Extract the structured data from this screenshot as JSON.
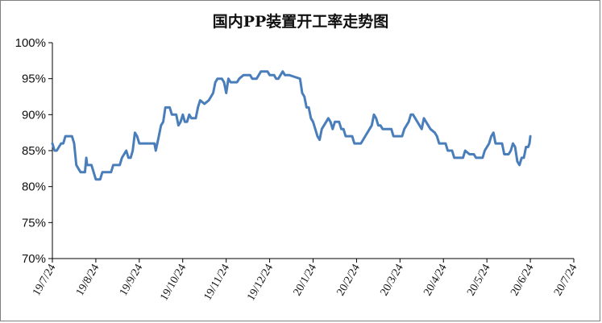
{
  "chart_data": {
    "type": "line",
    "title": "国内PP装置开工率走势图",
    "xlabel": "",
    "ylabel": "",
    "ylim": [
      70,
      100
    ],
    "yticks": [
      "70%",
      "75%",
      "80%",
      "85%",
      "90%",
      "95%",
      "100%"
    ],
    "xticks": [
      "19/7/24",
      "19/8/24",
      "19/9/24",
      "19/10/24",
      "19/11/24",
      "19/12/24",
      "20/1/24",
      "20/2/24",
      "20/3/24",
      "20/4/24",
      "20/5/24",
      "20/6/24",
      "20/7/24"
    ],
    "grid": false,
    "legend": "none",
    "line_color": "#4a7ebb",
    "series": [
      {
        "values": [
          [
            0.0,
            86.0
          ],
          [
            0.05,
            85.0
          ],
          [
            0.1,
            85.0
          ],
          [
            0.15,
            85.5
          ],
          [
            0.2,
            86.0
          ],
          [
            0.25,
            86.0
          ],
          [
            0.3,
            87.0
          ],
          [
            0.45,
            87.0
          ],
          [
            0.5,
            86.0
          ],
          [
            0.55,
            83.0
          ],
          [
            0.6,
            82.5
          ],
          [
            0.65,
            82.0
          ],
          [
            0.75,
            82.0
          ],
          [
            0.78,
            84.0
          ],
          [
            0.8,
            83.0
          ],
          [
            0.9,
            83.0
          ],
          [
            1.0,
            81.0
          ],
          [
            1.1,
            81.0
          ],
          [
            1.15,
            82.0
          ],
          [
            1.35,
            82.0
          ],
          [
            1.4,
            83.0
          ],
          [
            1.55,
            83.0
          ],
          [
            1.6,
            84.0
          ],
          [
            1.7,
            85.0
          ],
          [
            1.75,
            84.0
          ],
          [
            1.8,
            84.0
          ],
          [
            1.85,
            85.0
          ],
          [
            1.9,
            87.5
          ],
          [
            1.95,
            87.0
          ],
          [
            2.0,
            86.0
          ],
          [
            2.35,
            86.0
          ],
          [
            2.38,
            85.0
          ],
          [
            2.45,
            87.0
          ],
          [
            2.5,
            88.5
          ],
          [
            2.55,
            89.0
          ],
          [
            2.6,
            91.0
          ],
          [
            2.7,
            91.0
          ],
          [
            2.75,
            90.0
          ],
          [
            2.85,
            90.0
          ],
          [
            2.9,
            88.5
          ],
          [
            2.95,
            89.0
          ],
          [
            3.0,
            90.0
          ],
          [
            3.05,
            89.0
          ],
          [
            3.1,
            89.0
          ],
          [
            3.15,
            90.0
          ],
          [
            3.2,
            89.5
          ],
          [
            3.3,
            89.5
          ],
          [
            3.35,
            91.0
          ],
          [
            3.4,
            92.0
          ],
          [
            3.5,
            91.5
          ],
          [
            3.6,
            92.0
          ],
          [
            3.7,
            93.0
          ],
          [
            3.75,
            94.5
          ],
          [
            3.8,
            95.0
          ],
          [
            3.9,
            95.0
          ],
          [
            3.95,
            94.5
          ],
          [
            4.0,
            93.0
          ],
          [
            4.05,
            95.0
          ],
          [
            4.1,
            94.5
          ],
          [
            4.25,
            94.5
          ],
          [
            4.3,
            95.0
          ],
          [
            4.4,
            95.5
          ],
          [
            4.55,
            95.5
          ],
          [
            4.6,
            95.0
          ],
          [
            4.7,
            95.0
          ],
          [
            4.8,
            96.0
          ],
          [
            4.95,
            96.0
          ],
          [
            5.0,
            95.5
          ],
          [
            5.1,
            95.5
          ],
          [
            5.15,
            95.0
          ],
          [
            5.2,
            95.0
          ],
          [
            5.3,
            96.0
          ],
          [
            5.35,
            95.5
          ],
          [
            5.45,
            95.5
          ],
          [
            5.55,
            95.3
          ],
          [
            5.7,
            95.0
          ],
          [
            5.75,
            93.0
          ],
          [
            5.8,
            92.5
          ],
          [
            5.85,
            91.0
          ],
          [
            5.9,
            91.0
          ],
          [
            5.95,
            89.5
          ],
          [
            6.0,
            89.0
          ],
          [
            6.05,
            88.0
          ],
          [
            6.1,
            87.0
          ],
          [
            6.15,
            86.5
          ],
          [
            6.2,
            88.0
          ],
          [
            6.3,
            89.0
          ],
          [
            6.35,
            89.5
          ],
          [
            6.4,
            89.0
          ],
          [
            6.45,
            88.0
          ],
          [
            6.5,
            89.0
          ],
          [
            6.6,
            89.0
          ],
          [
            6.65,
            88.0
          ],
          [
            6.7,
            88.0
          ],
          [
            6.75,
            87.0
          ],
          [
            6.9,
            87.0
          ],
          [
            6.95,
            86.0
          ],
          [
            7.1,
            86.0
          ],
          [
            7.2,
            87.0
          ],
          [
            7.3,
            88.0
          ],
          [
            7.35,
            88.5
          ],
          [
            7.4,
            90.0
          ],
          [
            7.45,
            89.5
          ],
          [
            7.5,
            88.5
          ],
          [
            7.55,
            88.5
          ],
          [
            7.6,
            88.0
          ],
          [
            7.8,
            88.0
          ],
          [
            7.85,
            87.0
          ],
          [
            8.05,
            87.0
          ],
          [
            8.1,
            88.0
          ],
          [
            8.2,
            89.0
          ],
          [
            8.25,
            90.0
          ],
          [
            8.3,
            90.0
          ],
          [
            8.35,
            89.5
          ],
          [
            8.45,
            88.5
          ],
          [
            8.5,
            88.0
          ],
          [
            8.55,
            89.5
          ],
          [
            8.6,
            89.0
          ],
          [
            8.7,
            88.0
          ],
          [
            8.8,
            87.5
          ],
          [
            8.85,
            87.0
          ],
          [
            8.9,
            86.0
          ],
          [
            9.05,
            86.0
          ],
          [
            9.1,
            85.0
          ],
          [
            9.2,
            85.0
          ],
          [
            9.25,
            84.0
          ],
          [
            9.45,
            84.0
          ],
          [
            9.5,
            85.0
          ],
          [
            9.6,
            84.5
          ],
          [
            9.7,
            84.5
          ],
          [
            9.75,
            84.0
          ],
          [
            9.9,
            84.0
          ],
          [
            9.95,
            85.0
          ],
          [
            10.05,
            86.0
          ],
          [
            10.1,
            87.0
          ],
          [
            10.15,
            87.5
          ],
          [
            10.2,
            86.0
          ],
          [
            10.35,
            86.0
          ],
          [
            10.4,
            84.5
          ],
          [
            10.5,
            84.5
          ],
          [
            10.55,
            85.0
          ],
          [
            10.6,
            86.0
          ],
          [
            10.65,
            85.5
          ],
          [
            10.7,
            83.5
          ],
          [
            10.75,
            83.0
          ],
          [
            10.8,
            84.0
          ],
          [
            10.85,
            84.0
          ],
          [
            10.9,
            85.5
          ],
          [
            10.95,
            85.5
          ],
          [
            10.98,
            86.0
          ],
          [
            11.0,
            87.0
          ]
        ]
      }
    ]
  }
}
